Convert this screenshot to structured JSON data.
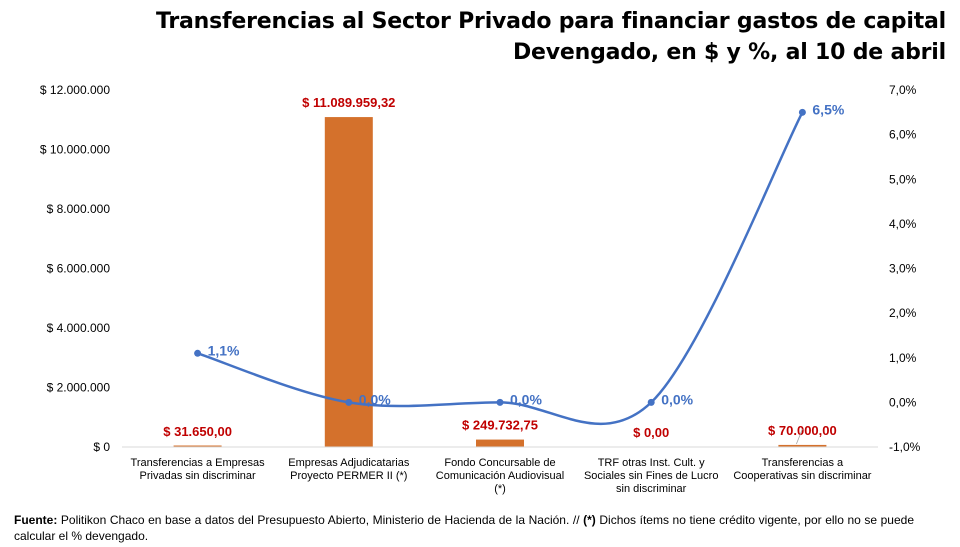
{
  "header": {
    "title_line1": "Transferencias al Sector Privado para financiar gastos de capital",
    "title_line2": "Devengado, en $ y %, al 10 de abril"
  },
  "chart_data": {
    "type": "bar",
    "categories": [
      [
        "Transferencias a Empresas",
        "Privadas sin discriminar"
      ],
      [
        "Empresas Adjudicatarias",
        "Proyecto PERMER II (*)"
      ],
      [
        "Fondo Concursable de",
        "Comunicación Audiovisual",
        "(*)"
      ],
      [
        "TRF otras Inst. Cult. y",
        "Sociales sin Fines de Lucro",
        "sin discriminar"
      ],
      [
        "Transferencias a",
        "Cooperativas sin discriminar"
      ]
    ],
    "series": [
      {
        "axis": "left",
        "type": "bar",
        "values": [
          31650,
          11089959.32,
          249732.75,
          0,
          70000
        ],
        "labels": [
          "$ 31.650,00",
          "$ 11.089.959,32",
          "$ 249.732,75",
          "$ 0,00",
          "$ 70.000,00"
        ],
        "color": "#D4712C",
        "label_color": "#C00000"
      },
      {
        "axis": "right",
        "type": "line",
        "values": [
          1.1,
          0.0,
          0.0,
          0.0,
          6.5
        ],
        "labels": [
          "1,1%",
          "0,0%",
          "0,0%",
          "0,0%",
          "6,5%"
        ],
        "color": "#4472C4",
        "label_color": "#4472C4"
      }
    ],
    "y_left": {
      "ylim": [
        0,
        12000000
      ],
      "ticks": [
        0,
        2000000,
        4000000,
        6000000,
        8000000,
        10000000,
        12000000
      ],
      "tick_labels": [
        "$ 0",
        "$ 2.000.000",
        "$ 4.000.000",
        "$ 6.000.000",
        "$ 8.000.000",
        "$ 10.000.000",
        "$ 12.000.000"
      ]
    },
    "y_right": {
      "ylim": [
        -1,
        7
      ],
      "ticks": [
        -1,
        0,
        1,
        2,
        3,
        4,
        5,
        6,
        7
      ],
      "tick_labels": [
        "-1,0%",
        "0,0%",
        "1,0%",
        "2,0%",
        "3,0%",
        "4,0%",
        "5,0%",
        "6,0%",
        "7,0%"
      ]
    },
    "grid": false
  },
  "footer": {
    "source_label": "Fuente:",
    "source_text": " Politikon Chaco en base a datos del Presupuesto Abierto, Ministerio de Hacienda de la Nación. // ",
    "note_label": "(*)",
    "note_text": " Dichos ítems no tiene crédito vigente, por ello no se puede calcular el % devengado."
  }
}
